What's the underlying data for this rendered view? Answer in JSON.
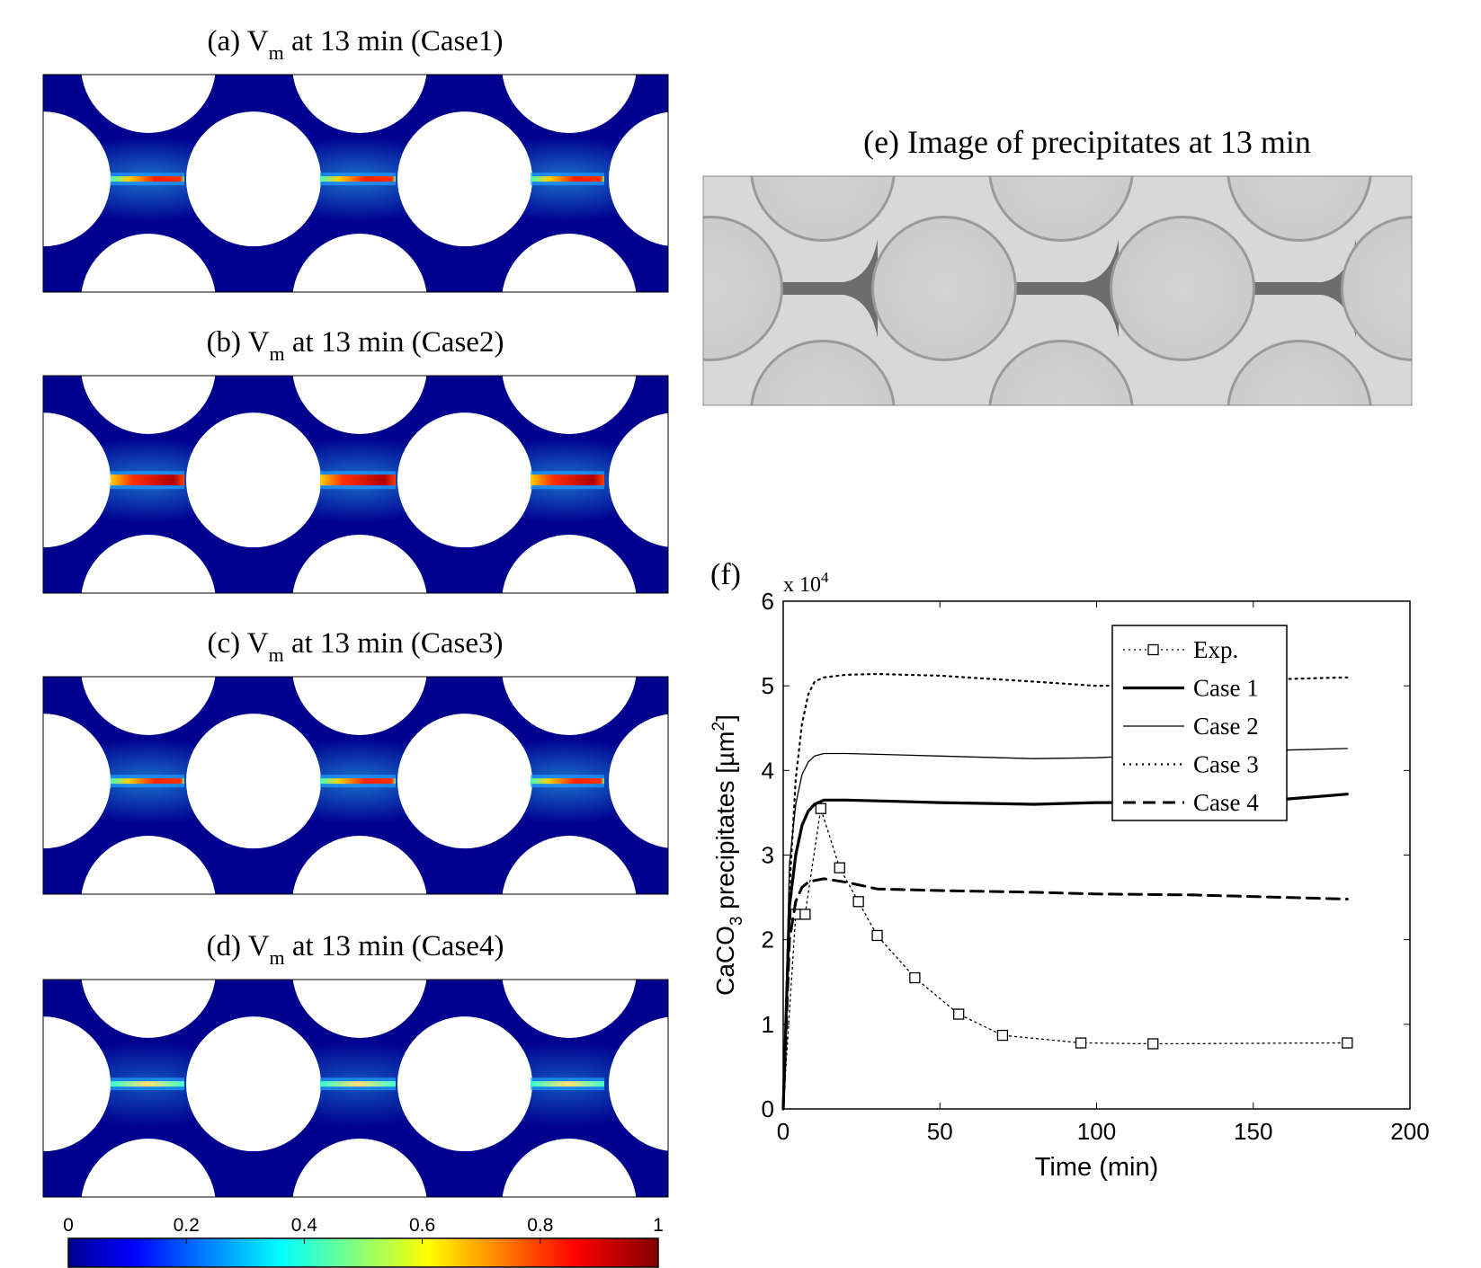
{
  "panels": [
    {
      "label": "(a)",
      "title_pre": "V",
      "title_sub": "m",
      "title_post": " at 13 min (Case1)",
      "band": "thin"
    },
    {
      "label": "(b)",
      "title_pre": "V",
      "title_sub": "m",
      "title_post": " at 13 min (Case2)",
      "band": "thick"
    },
    {
      "label": "(c)",
      "title_pre": "V",
      "title_sub": "m",
      "title_post": " at 13 min (Case3)",
      "band": "thin"
    },
    {
      "label": "(d)",
      "title_pre": "V",
      "title_sub": "m",
      "title_post": " at 13 min (Case4)",
      "band": "faint"
    }
  ],
  "colorbar": {
    "ticks": [
      "0",
      "0.2",
      "0.4",
      "0.6",
      "0.8",
      "1"
    ],
    "colormap": "jet"
  },
  "image_panel": {
    "title": "(e) Image of precipitates at 13 min"
  },
  "chart_panel": {
    "label": "(f)"
  },
  "chart_data": {
    "type": "line",
    "xlabel": "Time (min)",
    "ylabel_pre": "CaCO",
    "ylabel_sub": "3",
    "ylabel_mid": " precipitates [µm",
    "ylabel_sup": "2",
    "ylabel_post": "]",
    "y_multiplier_pre": "x 10",
    "y_multiplier_exp": "4",
    "xlim": [
      0,
      200
    ],
    "ylim": [
      0,
      6
    ],
    "xticks": [
      "0",
      "50",
      "100",
      "150",
      "200"
    ],
    "yticks": [
      "0",
      "1",
      "2",
      "3",
      "4",
      "5",
      "6"
    ],
    "legend_position": "top-right",
    "series": [
      {
        "name": "Exp.",
        "style": "dotted-markers",
        "x": [
          0,
          4,
          7,
          12,
          18,
          24,
          30,
          42,
          56,
          70,
          95,
          118,
          180
        ],
        "y": [
          0,
          2.3,
          2.3,
          3.55,
          2.85,
          2.45,
          2.05,
          1.55,
          1.12,
          0.87,
          0.78,
          0.77,
          0.78
        ]
      },
      {
        "name": "Case 1",
        "style": "thick-solid",
        "x": [
          0,
          2,
          4,
          6,
          8,
          10,
          13,
          20,
          30,
          50,
          80,
          100,
          130,
          160,
          180
        ],
        "y": [
          0,
          2.4,
          3.0,
          3.35,
          3.52,
          3.6,
          3.65,
          3.65,
          3.64,
          3.62,
          3.6,
          3.62,
          3.62,
          3.66,
          3.72
        ]
      },
      {
        "name": "Case 2",
        "style": "thin-solid",
        "x": [
          0,
          2,
          4,
          6,
          8,
          10,
          13,
          20,
          30,
          50,
          80,
          100,
          130,
          160,
          180
        ],
        "y": [
          0,
          2.9,
          3.6,
          3.95,
          4.1,
          4.17,
          4.2,
          4.2,
          4.19,
          4.17,
          4.14,
          4.15,
          4.2,
          4.24,
          4.26
        ]
      },
      {
        "name": "Case 3",
        "style": "dotted",
        "x": [
          0,
          2,
          4,
          6,
          8,
          10,
          13,
          20,
          30,
          50,
          80,
          100,
          130,
          160,
          180
        ],
        "y": [
          0,
          2.6,
          3.9,
          4.55,
          4.9,
          5.05,
          5.1,
          5.13,
          5.14,
          5.12,
          5.05,
          5.0,
          5.02,
          5.08,
          5.1
        ]
      },
      {
        "name": "Case 4",
        "style": "dashed",
        "x": [
          0,
          2,
          4,
          6,
          8,
          10,
          13,
          20,
          30,
          50,
          80,
          100,
          130,
          160,
          180
        ],
        "y": [
          0,
          2.0,
          2.45,
          2.62,
          2.68,
          2.7,
          2.72,
          2.68,
          2.6,
          2.58,
          2.56,
          2.54,
          2.53,
          2.5,
          2.48
        ]
      }
    ]
  }
}
